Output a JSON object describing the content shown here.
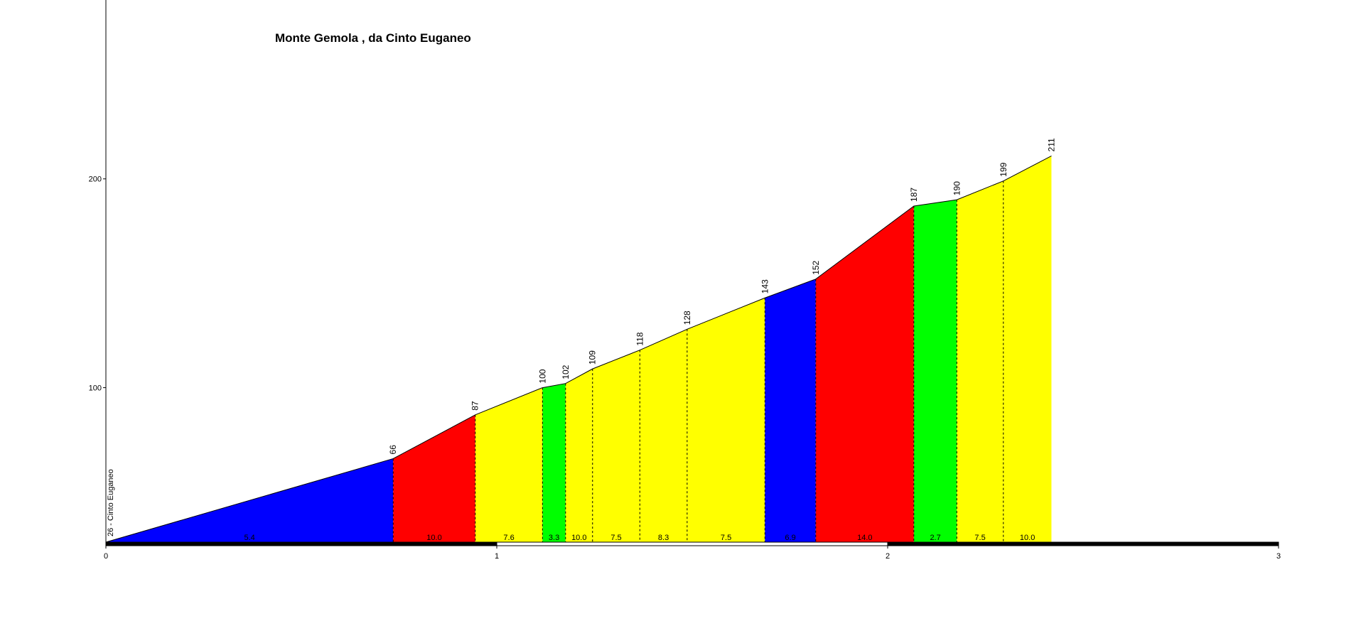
{
  "chart_data": {
    "type": "area",
    "title": "Monte Gemola , da Cinto Euganeo",
    "start_label": "26 - Cinto Euganeo",
    "x": [
      0,
      0.735,
      0.945,
      1.117,
      1.176,
      1.245,
      1.366,
      1.487,
      1.686,
      1.816,
      2.067,
      2.177,
      2.296,
      2.419
    ],
    "values": [
      26,
      66,
      87,
      100,
      102,
      109,
      118,
      128,
      143,
      152,
      187,
      190,
      199,
      211
    ],
    "gradients": [
      5.4,
      10.0,
      7.6,
      3.3,
      10.0,
      7.5,
      8.3,
      7.5,
      6.9,
      14.0,
      2.7,
      7.5,
      10.0
    ],
    "gradient_labels": [
      "5.4",
      "10.0",
      "7.6",
      "3.3",
      "10.0",
      "7.5",
      "8.3",
      "7.5",
      "6.9",
      "14.0",
      "2.7",
      "7.5",
      "10.0"
    ],
    "segment_colors": [
      "#0000ff",
      "#ff0000",
      "#ffff00",
      "#00ff00",
      "#ffff00",
      "#ffff00",
      "#ffff00",
      "#ffff00",
      "#0000ff",
      "#ff0000",
      "#00ff00",
      "#ffff00",
      "#ffff00"
    ],
    "xlim": [
      0,
      3
    ],
    "xticks": [
      0,
      1,
      2,
      3
    ],
    "ylim": [
      26,
      285
    ],
    "yticks": [
      100,
      200
    ]
  }
}
